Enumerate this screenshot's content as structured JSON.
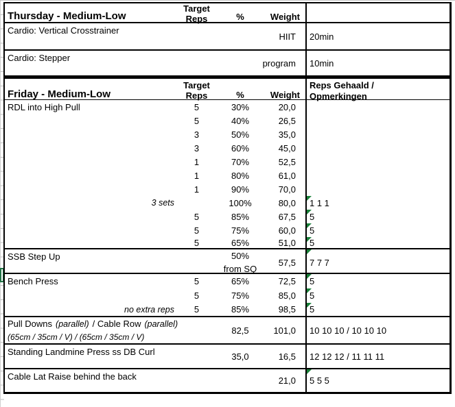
{
  "colors": {
    "flag_green": "#188038",
    "active_cell_green": "#217346",
    "border_black": "#000000",
    "gridline_gray": "#bdbdbd"
  },
  "headers": {
    "target_line1": "Target",
    "target_line2": "Reps",
    "pct": "%",
    "weight": "Weight",
    "reps_line1": "Reps Gehaald /",
    "reps_line2": "Opmerkingen"
  },
  "thursday": {
    "title": "Thursday - Medium-Low",
    "rows": [
      {
        "exercise": "Cardio: Vertical Crosstrainer",
        "weight": "HIIT",
        "reps": "20min"
      },
      {
        "exercise": "Cardio: Stepper",
        "weight": "program",
        "reps": "10min"
      }
    ]
  },
  "friday": {
    "title": "Friday - Medium-Low",
    "rdl": {
      "rows": [
        {
          "exercise": "RDL into High Pull",
          "target": "5",
          "pct": "30%",
          "weight": "20,0",
          "reps": ""
        },
        {
          "exercise": "",
          "target": "5",
          "pct": "40%",
          "weight": "26,5",
          "reps": ""
        },
        {
          "exercise": "",
          "target": "3",
          "pct": "50%",
          "weight": "35,0",
          "reps": ""
        },
        {
          "exercise": "",
          "target": "3",
          "pct": "60%",
          "weight": "45,0",
          "reps": ""
        },
        {
          "exercise": "",
          "target": "1",
          "pct": "70%",
          "weight": "52,5",
          "reps": ""
        },
        {
          "exercise": "",
          "target": "1",
          "pct": "80%",
          "weight": "61,0",
          "reps": ""
        },
        {
          "exercise": "",
          "target": "1",
          "pct": "90%",
          "weight": "70,0",
          "reps": ""
        },
        {
          "note": "3 sets",
          "target": "",
          "pct": "100%",
          "weight": "80,0",
          "reps": "1 1 1"
        },
        {
          "exercise": "",
          "target": "5",
          "pct": "85%",
          "weight": "67,5",
          "reps": "5"
        },
        {
          "exercise": "",
          "target": "5",
          "pct": "75%",
          "weight": "60,0",
          "reps": "5"
        },
        {
          "exercise": "",
          "target": "5",
          "pct": "65%",
          "weight": "51,0",
          "reps": "5"
        }
      ]
    },
    "ssb": {
      "exercise": "SSB Step Up",
      "pct_line1": "50%",
      "pct_line2": "from SQ",
      "weight": "57,5",
      "reps": "7 7 7"
    },
    "bench": {
      "rows": [
        {
          "exercise": "Bench Press",
          "target": "5",
          "pct": "65%",
          "weight": "72,5",
          "reps": "5"
        },
        {
          "exercise": "",
          "target": "5",
          "pct": "75%",
          "weight": "85,0",
          "reps": "5"
        },
        {
          "note": "no extra reps",
          "target": "5",
          "pct": "85%",
          "weight": "98,5",
          "reps": "5"
        }
      ]
    },
    "pulldowns": {
      "name_1": "Pull Downs",
      "name_2": "(parallel)",
      "name_3": "/ Cable Row",
      "name_4": "(parallel)",
      "subtitle": "(65cm / 35cm / V) / (65cm / 35cm / V)",
      "pct": "82,5",
      "weight": "101,0",
      "reps": "10 10 10 / 10 10 10"
    },
    "landmine": {
      "exercise": "Standing Landmine Press ss DB Curl",
      "pct": "35,0",
      "weight": "16,5",
      "reps": "12 12 12 / 11 11 11"
    },
    "cable_lat": {
      "exercise": "Cable Lat Raise behind the back",
      "weight": "21,0",
      "reps": "5 5 5"
    }
  }
}
